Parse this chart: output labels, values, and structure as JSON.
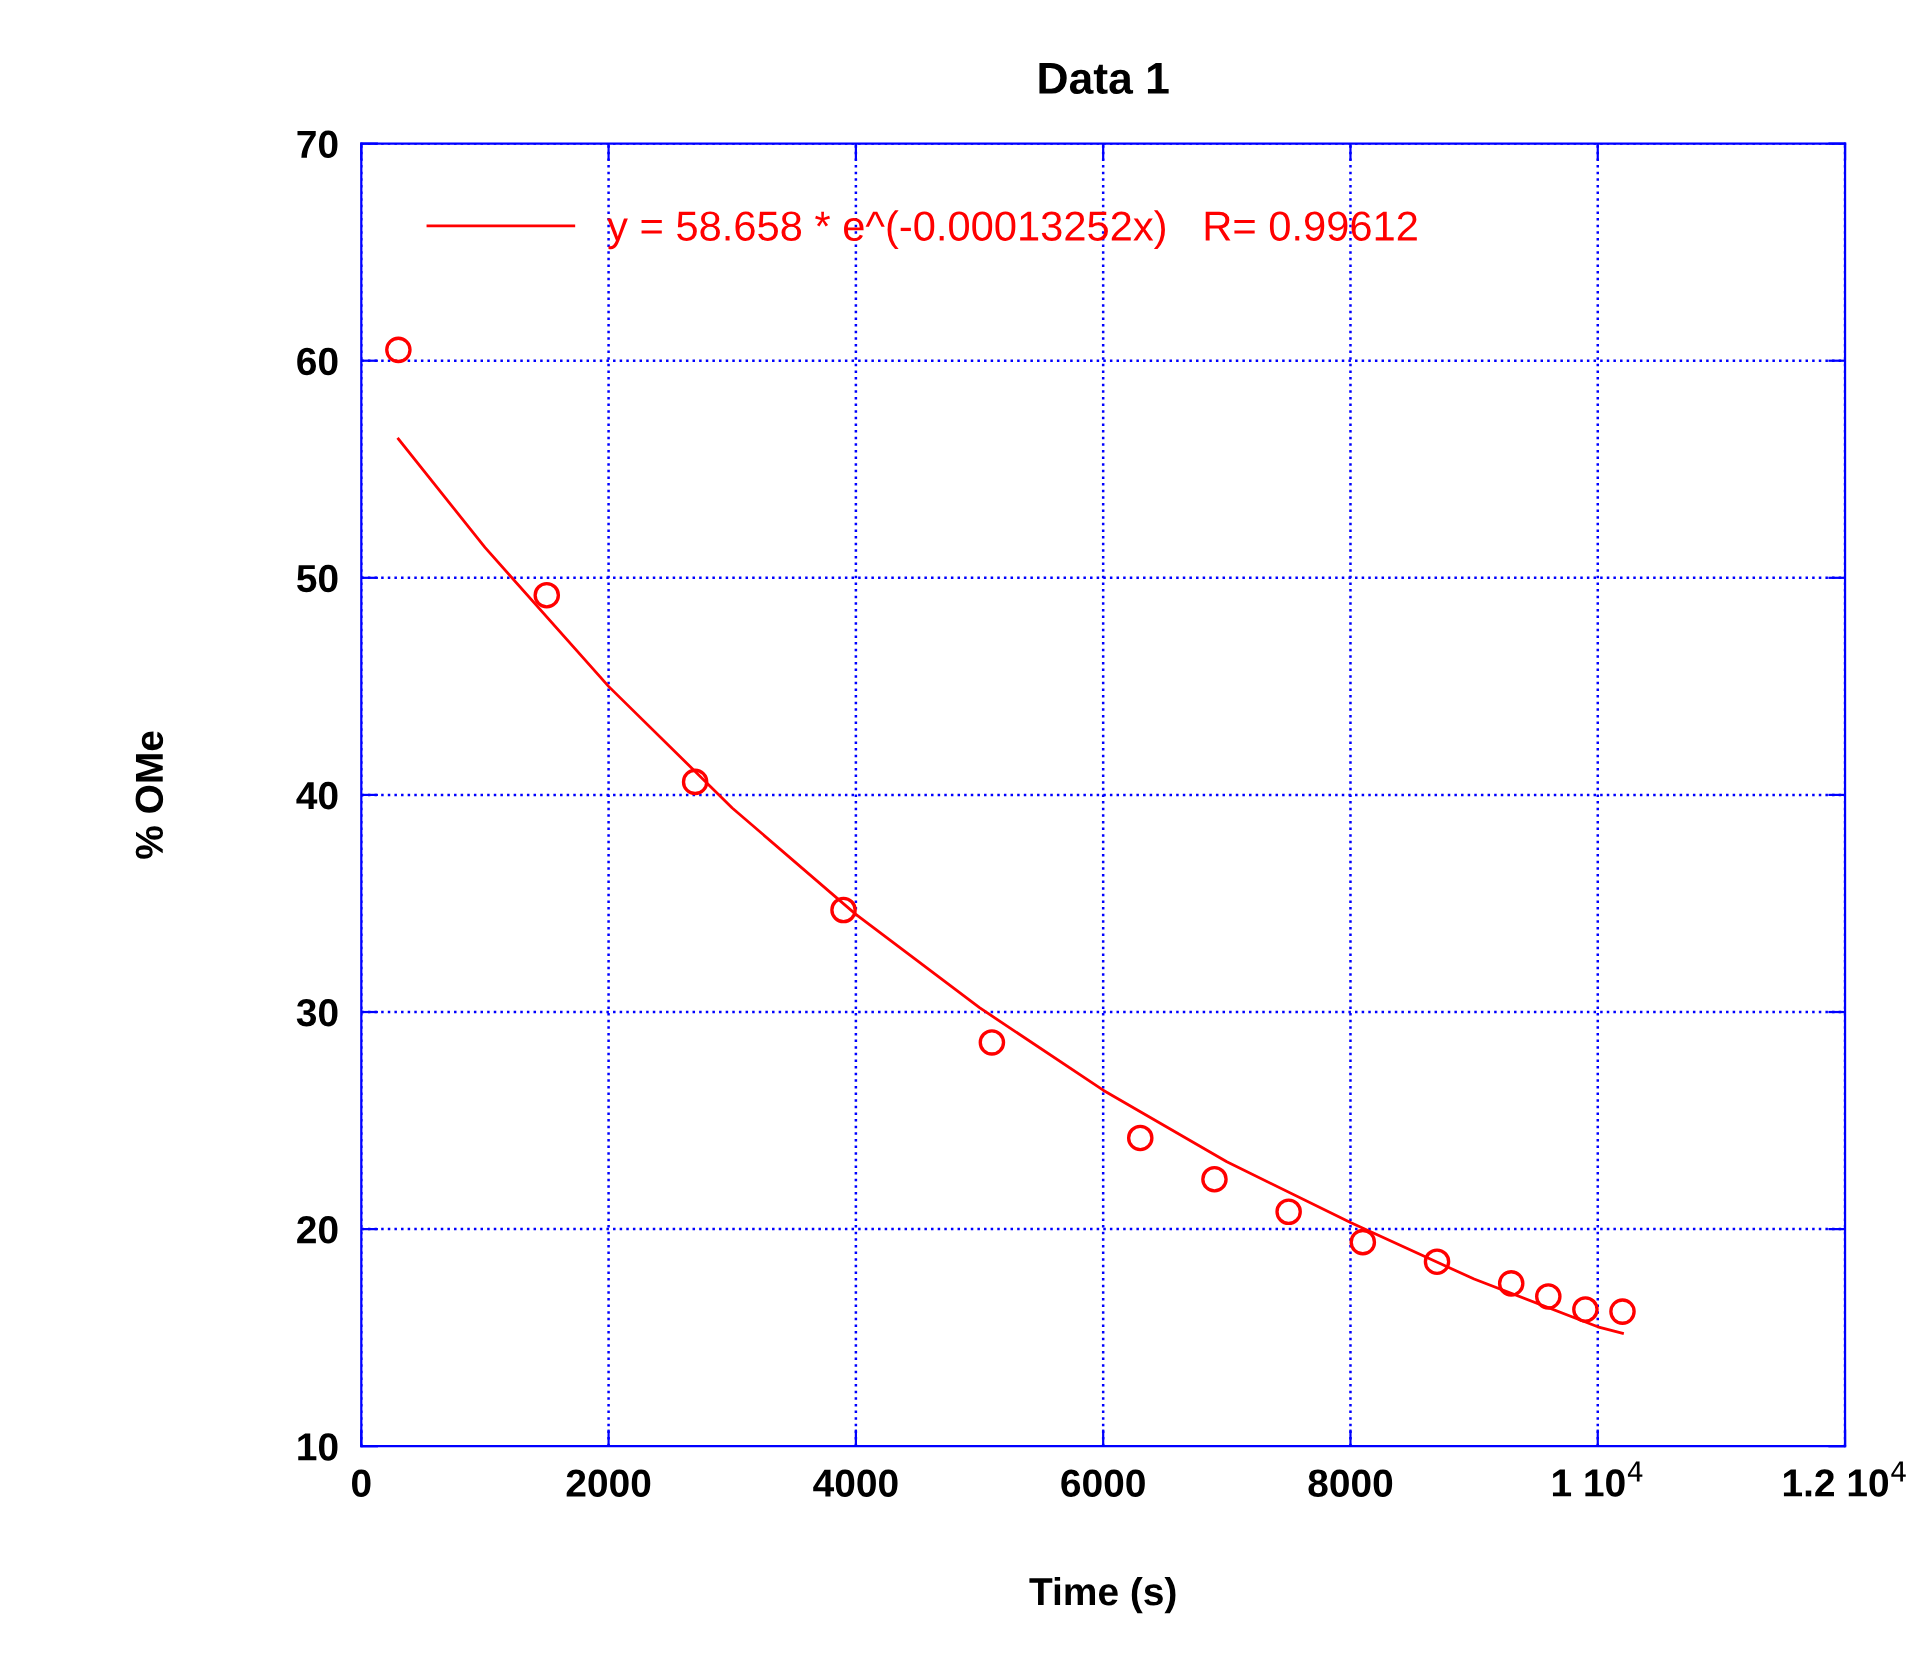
{
  "chart_data": {
    "type": "scatter",
    "title": "Data 1",
    "xlabel": "Time (s)",
    "ylabel": "% OMe",
    "xlim": [
      0,
      12000
    ],
    "ylim": [
      10,
      70
    ],
    "xticks": [
      0,
      2000,
      4000,
      6000,
      8000,
      {
        "value": 10000,
        "label": "1 10$^{4}$"
      },
      {
        "value": 12000,
        "label": "1.2 10$^{4}$"
      }
    ],
    "yticks": [
      10,
      20,
      30,
      40,
      50,
      60,
      70
    ],
    "grid": true,
    "legend": "top left",
    "series": [
      {
        "marker": "circle",
        "color": "#ff0000",
        "x": [
          300,
          1500,
          2700,
          3900,
          5100,
          6300,
          6900,
          7500,
          8100,
          8700,
          9300,
          9600,
          9900,
          10200
        ],
        "values": [
          60.5,
          49.2,
          40.6,
          34.7,
          28.6,
          24.2,
          22.3,
          20.8,
          19.4,
          18.5,
          17.5,
          16.9,
          16.3,
          16.2
        ]
      },
      {
        "type": "line",
        "marker": "none",
        "name": "y = 58.658 * e^(-0.00013252x)   R= 0.99612",
        "color": "#ff0000",
        "x": [
          300,
          1000,
          2000,
          3000,
          4000,
          5000,
          6000,
          7000,
          8000,
          9000,
          10000,
          10200
        ],
        "values": [
          56.4,
          51.4,
          45.0,
          39.4,
          34.5,
          30.2,
          26.4,
          23.1,
          20.3,
          17.7,
          15.5,
          15.2
        ]
      }
    ]
  }
}
